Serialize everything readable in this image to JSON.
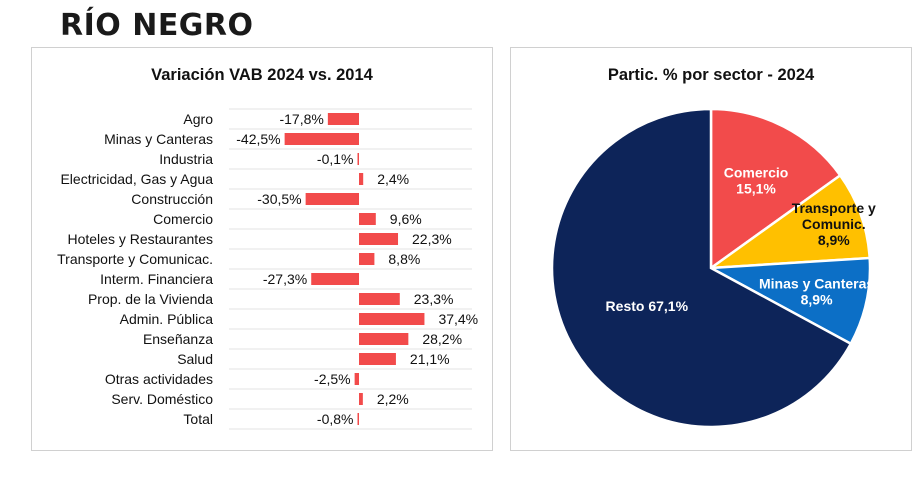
{
  "page": {
    "title": "RÍO NEGRO"
  },
  "chart_data": [
    {
      "type": "bar",
      "orientation": "horizontal",
      "title": "Variación VAB 2024 vs. 2014",
      "categories": [
        "Agro",
        "Minas y Canteras",
        "Industria",
        "Electricidad, Gas y Agua",
        "Construcción",
        "Comercio",
        "Hoteles y Restaurantes",
        "Transporte y Comunicac.",
        "Interm. Financiera",
        "Prop. de la Vivienda",
        "Admin. Pública",
        "Enseñanza",
        "Salud",
        "Otras actividades",
        "Serv. Doméstico",
        "Total"
      ],
      "values": [
        -17.8,
        -42.5,
        -0.1,
        2.4,
        -30.5,
        9.6,
        22.3,
        8.8,
        -27.3,
        23.3,
        37.4,
        28.2,
        21.1,
        -2.5,
        2.2,
        -0.8
      ],
      "labels": [
        "-17,8%",
        "-42,5%",
        "-0,1%",
        "2,4%",
        "-30,5%",
        "9,6%",
        "22,3%",
        "8,8%",
        "-27,3%",
        "23,3%",
        "37,4%",
        "28,2%",
        "21,1%",
        "-2,5%",
        "2,2%",
        "-0,8%"
      ],
      "bar_color": "#f24b4b",
      "grid": true
    },
    {
      "type": "pie",
      "title": "Partic. % por sector - 2024",
      "slices": [
        {
          "name": "Comercio",
          "value": 15.1,
          "label": "15,1%",
          "color": "#f24b4b",
          "text_color": "#ffffff"
        },
        {
          "name": "Transporte y Comunic.",
          "value": 8.9,
          "label": "8,9%",
          "color": "#ffc000",
          "text_color": "#111111"
        },
        {
          "name": "Minas y Canteras",
          "value": 8.9,
          "label": "8,9%",
          "color": "#0c6fc6",
          "text_color": "#ffffff"
        },
        {
          "name": "Resto",
          "value": 67.1,
          "label": "67,1%",
          "color": "#0d2459",
          "text_color": "#ffffff"
        }
      ]
    }
  ]
}
